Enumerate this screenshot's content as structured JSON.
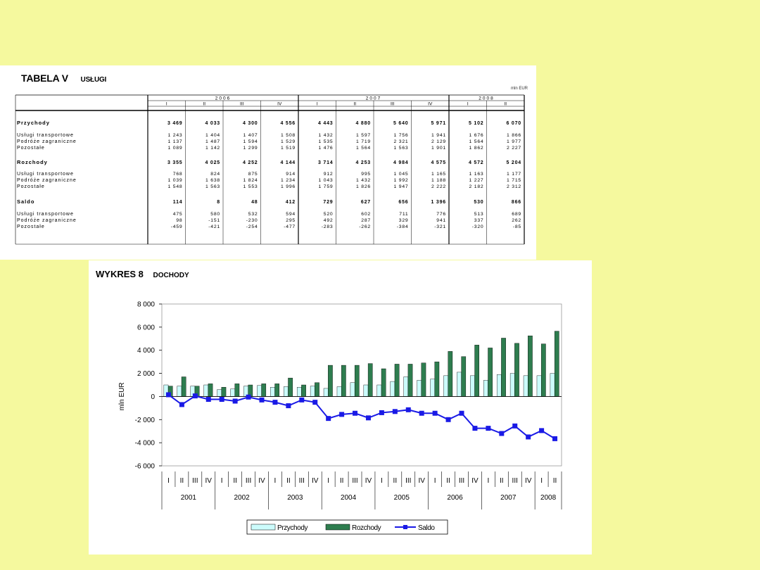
{
  "table": {
    "title_label": "TABELA V",
    "title_name": "Usługi",
    "unit": "mln EUR",
    "years": [
      "2006",
      "2007",
      "2008"
    ],
    "quarters": [
      "I",
      "II",
      "III",
      "IV",
      "I",
      "II",
      "III",
      "IV",
      "I",
      "II"
    ],
    "rows": [
      {
        "label": "Przychody",
        "bold": true,
        "values": [
          "3 469",
          "4 033",
          "4 300",
          "4 556",
          "4 443",
          "4 880",
          "5 640",
          "5 971",
          "5 102",
          "6 070"
        ]
      },
      {
        "label": "Usługi transportowe",
        "bold": false,
        "values": [
          "1 243",
          "1 404",
          "1 407",
          "1 508",
          "1 432",
          "1 597",
          "1 756",
          "1 941",
          "1 676",
          "1 866"
        ]
      },
      {
        "label": "Podróże zagraniczne",
        "bold": false,
        "values": [
          "1 137",
          "1 487",
          "1 594",
          "1 529",
          "1 535",
          "1 719",
          "2 321",
          "2 129",
          "1 564",
          "1 977"
        ]
      },
      {
        "label": "Pozostałe",
        "bold": false,
        "values": [
          "1 089",
          "1 142",
          "1 299",
          "1 519",
          "1 476",
          "1 564",
          "1 563",
          "1 901",
          "1 862",
          "2 227"
        ]
      },
      {
        "label": "Rozchody",
        "bold": true,
        "values": [
          "3 355",
          "4 025",
          "4 252",
          "4 144",
          "3 714",
          "4 253",
          "4 984",
          "4 575",
          "4 572",
          "5 204"
        ]
      },
      {
        "label": "Usługi transportowe",
        "bold": false,
        "values": [
          "768",
          "824",
          "875",
          "914",
          "912",
          "995",
          "1 045",
          "1 165",
          "1 163",
          "1 177"
        ]
      },
      {
        "label": "Podróże zagraniczne",
        "bold": false,
        "values": [
          "1 039",
          "1 638",
          "1 824",
          "1 234",
          "1 043",
          "1 432",
          "1 992",
          "1 188",
          "1 227",
          "1 715"
        ]
      },
      {
        "label": "Pozostałe",
        "bold": false,
        "values": [
          "1 548",
          "1 563",
          "1 553",
          "1 996",
          "1 759",
          "1 826",
          "1 947",
          "2 222",
          "2 182",
          "2 312"
        ]
      },
      {
        "label": "Saldo",
        "bold": true,
        "values": [
          "114",
          "8",
          "48",
          "412",
          "729",
          "627",
          "656",
          "1 396",
          "530",
          "866"
        ]
      },
      {
        "label": "Usługi transportowe",
        "bold": false,
        "values": [
          "475",
          "580",
          "532",
          "594",
          "520",
          "602",
          "711",
          "776",
          "513",
          "689"
        ]
      },
      {
        "label": "Podróże zagraniczne",
        "bold": false,
        "values": [
          "98",
          "-151",
          "-230",
          "295",
          "492",
          "287",
          "329",
          "941",
          "337",
          "262"
        ]
      },
      {
        "label": "Pozostałe",
        "bold": false,
        "values": [
          "-459",
          "-421",
          "-254",
          "-477",
          "-283",
          "-262",
          "-384",
          "-321",
          "-320",
          "-85"
        ]
      }
    ]
  },
  "chart_panel": {
    "title_label": "WYKRES 8",
    "title_name": "Dochody"
  },
  "chart_data": {
    "type": "bar",
    "ylabel": "mln EUR",
    "ylim": [
      -6000,
      8000
    ],
    "yticks": [
      8000,
      6000,
      4000,
      2000,
      0,
      -2000,
      -4000,
      -6000
    ],
    "ytick_labels": [
      "8 000",
      "6 000",
      "4 000",
      "2 000",
      "0",
      "-2 000",
      "-4 000",
      "-6 000"
    ],
    "grid": false,
    "legend_position": "bottom",
    "categories": [
      "I",
      "II",
      "III",
      "IV",
      "I",
      "II",
      "III",
      "IV",
      "I",
      "II",
      "III",
      "IV",
      "I",
      "II",
      "III",
      "IV",
      "I",
      "II",
      "III",
      "IV",
      "I",
      "II",
      "III",
      "IV",
      "I",
      "II",
      "III",
      "IV",
      "I",
      "II"
    ],
    "years": [
      {
        "label": "2001",
        "quarters": 4
      },
      {
        "label": "2002",
        "quarters": 4
      },
      {
        "label": "2003",
        "quarters": 4
      },
      {
        "label": "2004",
        "quarters": 4
      },
      {
        "label": "2005",
        "quarters": 4
      },
      {
        "label": "2006",
        "quarters": 4
      },
      {
        "label": "2007",
        "quarters": 4
      },
      {
        "label": "2008",
        "quarters": 2
      }
    ],
    "series": [
      {
        "name": "Przychody",
        "type": "bar",
        "color": "#ccfcfc",
        "values": [
          1000,
          900,
          900,
          1000,
          600,
          650,
          900,
          950,
          800,
          850,
          800,
          900,
          700,
          850,
          1200,
          1000,
          1000,
          1300,
          1700,
          1400,
          1500,
          1800,
          2100,
          1800,
          1400,
          1900,
          2000,
          1800,
          1800,
          2000
        ]
      },
      {
        "name": "Rozchody",
        "type": "bar",
        "color": "#2e7d4f",
        "values": [
          900,
          1700,
          900,
          1100,
          800,
          1100,
          1000,
          1100,
          1100,
          1600,
          1000,
          1200,
          2700,
          2700,
          2700,
          2850,
          2400,
          2800,
          2800,
          2900,
          3000,
          3900,
          3450,
          4450,
          4200,
          5050,
          4600,
          5250,
          4550,
          5650
        ]
      },
      {
        "name": "Saldo",
        "type": "line",
        "color": "#1a1ae6",
        "values": [
          150,
          -700,
          50,
          -250,
          -250,
          -400,
          -50,
          -300,
          -500,
          -800,
          -300,
          -500,
          -1900,
          -1550,
          -1450,
          -1850,
          -1400,
          -1300,
          -1150,
          -1450,
          -1450,
          -2000,
          -1450,
          -2750,
          -2750,
          -3200,
          -2550,
          -3500,
          -2950,
          -3650
        ]
      }
    ]
  }
}
